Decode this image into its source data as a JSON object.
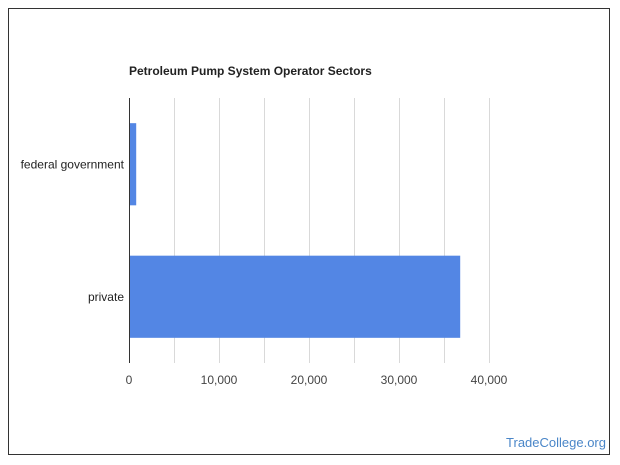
{
  "chart_data": {
    "type": "bar",
    "orientation": "horizontal",
    "title": "Petroleum Pump System Operator Sectors",
    "categories": [
      "federal government",
      "private"
    ],
    "values": [
      800,
      36800
    ],
    "xlim": [
      0,
      40000
    ],
    "ticks": [
      0,
      10000,
      20000,
      30000,
      40000
    ],
    "tick_labels": [
      "0",
      "10,000",
      "20,000",
      "30,000",
      "40,000"
    ],
    "grid": true,
    "bar_color": "#5386e4"
  },
  "watermark": "TradeCollege.org"
}
